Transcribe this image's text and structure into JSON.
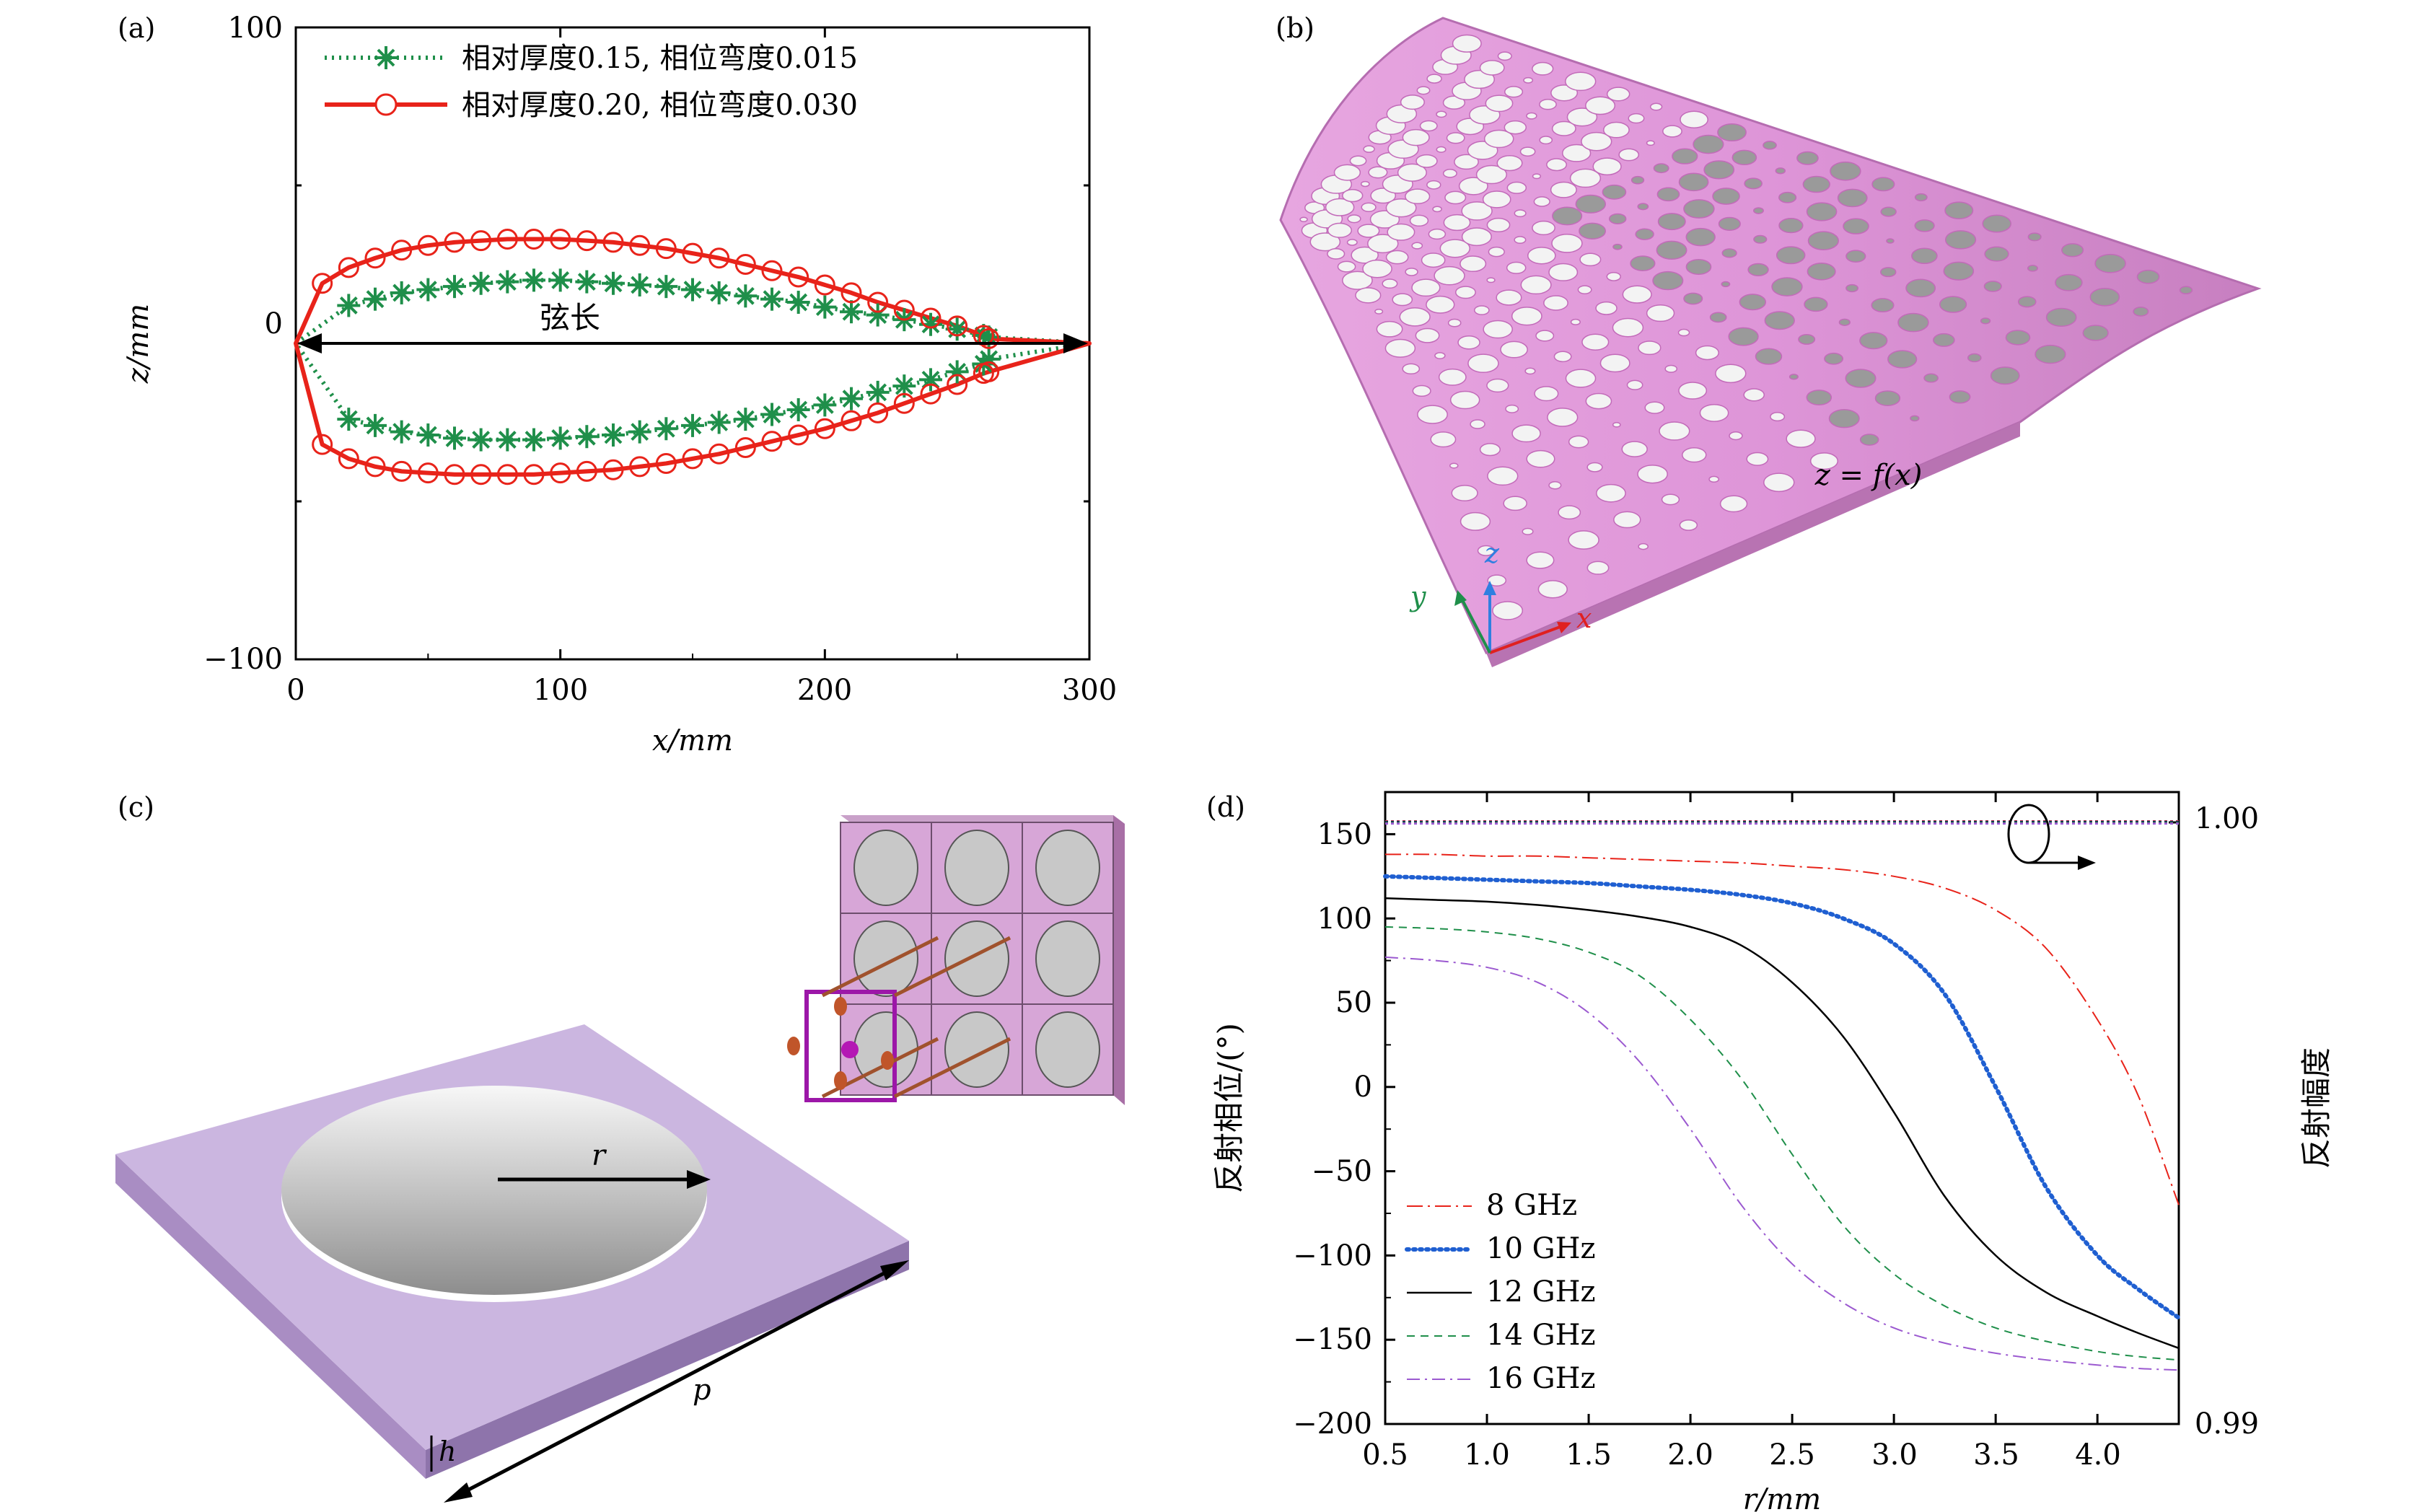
{
  "chart_data": [
    {
      "panel": "(a)",
      "type": "line",
      "xlabel": "x/mm",
      "ylabel": "z/mm",
      "xlim": [
        0,
        300
      ],
      "ylim": [
        -100,
        100
      ],
      "xticks": [
        "0",
        "100",
        "200",
        "300"
      ],
      "yticks": [
        "100",
        "0",
        "−100"
      ],
      "annotation": "弦长",
      "legend_position": "top-left",
      "series": [
        {
          "name": "相对厚度0.15, 相位弯度0.015",
          "color": "#1f8f4a",
          "upper": {
            "x": [
              20,
              30,
              40,
              50,
              60,
              70,
              80,
              90,
              100,
              110,
              120,
              130,
              140,
              150,
              160,
              170,
              180,
              190,
              200,
              210,
              220,
              230,
              240,
              250,
              260,
              262
            ],
            "z": [
              12,
              14,
              16,
              17,
              18,
              19,
              19.5,
              20,
              20,
              19.5,
              19,
              18.5,
              18,
              17,
              16,
              15,
              14,
              13,
              11.5,
              10,
              9,
              7.5,
              6,
              4.5,
              2.5,
              2
            ]
          },
          "lower": {
            "x": [
              20,
              30,
              40,
              50,
              60,
              70,
              80,
              90,
              100,
              110,
              120,
              130,
              140,
              150,
              160,
              170,
              180,
              190,
              200,
              210,
              220,
              230,
              240,
              250,
              260,
              262
            ],
            "z": [
              -24,
              -26,
              -28,
              -29,
              -30,
              -30.5,
              -30.5,
              -30.5,
              -30,
              -29.5,
              -29,
              -28,
              -27,
              -26,
              -25,
              -24,
              -22.5,
              -21,
              -19.5,
              -17.5,
              -15.5,
              -13.5,
              -11.5,
              -9,
              -6.5,
              -5
            ]
          }
        },
        {
          "name": "相对厚度0.20, 相位弯度0.030",
          "color": "#e8231a",
          "upper": {
            "x": [
              10,
              20,
              30,
              40,
              50,
              60,
              70,
              80,
              90,
              100,
              110,
              120,
              130,
              140,
              150,
              160,
              170,
              180,
              190,
              200,
              210,
              220,
              230,
              240,
              250,
              260,
              262
            ],
            "z": [
              19,
              24,
              27,
              29.5,
              31,
              32,
              32.5,
              33,
              33,
              33,
              32.5,
              32,
              31,
              30,
              28.5,
              27,
              25,
              23,
              21,
              18.5,
              16,
              13,
              10.5,
              8,
              5.5,
              2.5,
              1.5
            ]
          },
          "lower": {
            "x": [
              10,
              20,
              30,
              40,
              50,
              60,
              70,
              80,
              90,
              100,
              110,
              120,
              130,
              140,
              150,
              160,
              170,
              180,
              190,
              200,
              210,
              220,
              230,
              240,
              250,
              260,
              262
            ],
            "z": [
              -32,
              -36.5,
              -39,
              -40.5,
              -41,
              -41.5,
              -41.5,
              -41.5,
              -41.5,
              -41,
              -40.5,
              -40,
              -39,
              -38,
              -36.5,
              -35,
              -33,
              -31,
              -29,
              -27,
              -24.5,
              -22,
              -19,
              -16,
              -13,
              -9.5,
              -9
            ]
          }
        }
      ]
    },
    {
      "panel": "(b)",
      "type": "other",
      "equation": "z = f(x)",
      "axes": [
        "x",
        "y",
        "z"
      ]
    },
    {
      "panel": "(c)",
      "type": "other",
      "labels": [
        "r",
        "p",
        "h"
      ]
    },
    {
      "panel": "(d)",
      "type": "line",
      "xlabel": "r/mm",
      "ylabel": "反射相位/(°)",
      "y2label": "反射幅度",
      "xlim": [
        0.5,
        4.4
      ],
      "ylim": [
        -200,
        175
      ],
      "y2lim": [
        0.99,
        1.0
      ],
      "xticks": [
        "0.5",
        "1.0",
        "1.5",
        "2.0",
        "2.5",
        "3.0",
        "3.5",
        "4.0"
      ],
      "yticks": [
        "150",
        "100",
        "50",
        "0",
        "−50",
        "−100",
        "−150",
        "−200"
      ],
      "y2ticks": [
        "1.00",
        "0.99"
      ],
      "legend_position": "bottom-left",
      "r": [
        0.5,
        0.75,
        1.0,
        1.25,
        1.5,
        1.75,
        2.0,
        2.25,
        2.5,
        2.75,
        3.0,
        3.25,
        3.5,
        3.75,
        4.0,
        4.2,
        4.4
      ],
      "series": [
        {
          "name": "8 GHz",
          "color": "#e8231a",
          "dash": "22 7 3 7",
          "width": 2,
          "values": [
            138,
            138,
            137,
            137,
            136,
            135,
            134,
            133,
            131,
            129,
            125,
            118,
            105,
            82,
            40,
            -5,
            -70
          ]
        },
        {
          "name": "10 GHz",
          "color": "#1f5fd1",
          "dash": "3 6",
          "width": 6,
          "values": [
            125,
            124,
            123,
            122,
            121,
            119,
            117,
            114,
            109,
            100,
            85,
            55,
            0,
            -60,
            -100,
            -120,
            -137
          ]
        },
        {
          "name": "12 GHz",
          "color": "#000000",
          "dash": "",
          "width": 2.5,
          "values": [
            112,
            111,
            110,
            108,
            105,
            101,
            95,
            84,
            62,
            30,
            -15,
            -65,
            -100,
            -122,
            -136,
            -146,
            -155
          ]
        },
        {
          "name": "14 GHz",
          "color": "#1f8f4a",
          "dash": "11 8",
          "width": 2,
          "values": [
            95,
            94,
            92,
            88,
            80,
            66,
            40,
            5,
            -40,
            -82,
            -111,
            -130,
            -143,
            -151,
            -157,
            -160,
            -162
          ]
        },
        {
          "name": "16 GHz",
          "color": "#9b59d0",
          "dash": "18 7 3 7",
          "width": 2,
          "values": [
            77,
            75,
            71,
            62,
            44,
            15,
            -25,
            -70,
            -105,
            -128,
            -143,
            -152,
            -158,
            -162,
            -165,
            -167,
            -168
          ]
        }
      ],
      "amplitude": {
        "value": 1.0,
        "colors": [
          "#e8231a",
          "#1f5fd1",
          "#000000",
          "#1f8f4a",
          "#9b59d0"
        ]
      }
    }
  ]
}
